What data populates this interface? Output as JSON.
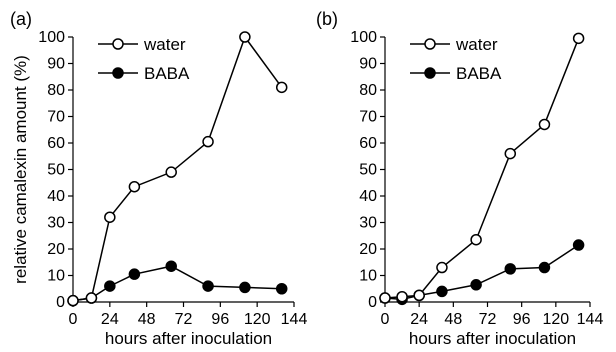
{
  "chart_data": [
    {
      "type": "line",
      "panel_label": "(a)",
      "xlabel": "hours after inoculation",
      "ylabel": "relative camalexin amount (%)",
      "xlim": [
        0,
        144
      ],
      "ylim": [
        0,
        100
      ],
      "xticks": [
        0,
        24,
        48,
        72,
        96,
        120,
        144
      ],
      "yticks": [
        0,
        10,
        20,
        30,
        40,
        50,
        60,
        70,
        80,
        90,
        100
      ],
      "grid": false,
      "legend_position": "top-left",
      "series": [
        {
          "name": "water",
          "marker": "open-circle",
          "x": [
            0,
            12,
            24,
            40,
            64,
            88,
            112,
            136
          ],
          "y": [
            0.5,
            1.5,
            32,
            43.5,
            49,
            60.5,
            100,
            81
          ]
        },
        {
          "name": "BABA",
          "marker": "filled-circle",
          "x": [
            0,
            12,
            24,
            40,
            64,
            88,
            112,
            136
          ],
          "y": [
            0.5,
            1.5,
            6,
            10.5,
            13.5,
            6,
            5.5,
            5
          ]
        }
      ]
    },
    {
      "type": "line",
      "panel_label": "(b)",
      "xlabel": "hours after inoculation",
      "ylabel": "",
      "xlim": [
        0,
        144
      ],
      "ylim": [
        0,
        100
      ],
      "xticks": [
        0,
        24,
        48,
        72,
        96,
        120,
        144
      ],
      "yticks": [
        0,
        10,
        20,
        30,
        40,
        50,
        60,
        70,
        80,
        90,
        100
      ],
      "grid": false,
      "legend_position": "top-left",
      "series": [
        {
          "name": "water",
          "marker": "open-circle",
          "x": [
            0,
            12,
            24,
            40,
            64,
            88,
            112,
            136
          ],
          "y": [
            1.5,
            2,
            2.5,
            13,
            23.5,
            56,
            67,
            99.5
          ]
        },
        {
          "name": "BABA",
          "marker": "filled-circle",
          "x": [
            0,
            12,
            24,
            40,
            64,
            88,
            112,
            136
          ],
          "y": [
            1.5,
            1,
            2.5,
            4,
            6.5,
            12.5,
            13,
            21.5
          ]
        }
      ]
    }
  ]
}
